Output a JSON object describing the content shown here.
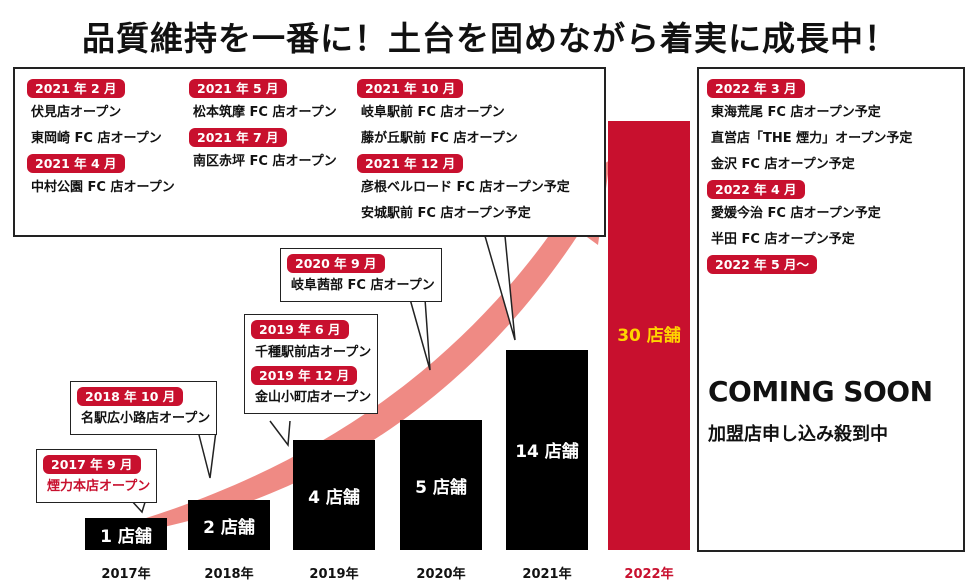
{
  "title": "品質維持を一番に！土台を固めながら着実に成長中！",
  "colors": {
    "accent": "#c8102e",
    "bar": "#000000",
    "arrow": "#ef8a84"
  },
  "chart_data": {
    "type": "bar",
    "categories": [
      "2017年",
      "2018年",
      "2019年",
      "2020年",
      "2021年",
      "2022年"
    ],
    "values": [
      1,
      2,
      4,
      5,
      14,
      30
    ],
    "data_labels": [
      "1 店舗",
      "2 店舗",
      "4 店舗",
      "5 店舗",
      "14 店舗",
      "30 店舗"
    ],
    "highlight": "2022年",
    "grid": false
  },
  "callouts": {
    "y2017": {
      "date": "2017 年 9 月",
      "text": "煙力本店オープン"
    },
    "y2018": {
      "date": "2018 年 10 月",
      "text": "名駅広小路店オープン"
    },
    "y2019": [
      {
        "date": "2019 年 6 月",
        "text": "千種駅前店オープン"
      },
      {
        "date": "2019 年 12 月",
        "text": "金山小町店オープン"
      }
    ],
    "y2020": {
      "date": "2020 年 9 月",
      "text": "岐阜茜部 FC 店オープン"
    }
  },
  "box2021": {
    "col1": [
      {
        "date": "2021 年 2 月",
        "items": [
          "伏見店オープン",
          "東岡崎 FC 店オープン"
        ]
      },
      {
        "date": "2021 年 4 月",
        "items": [
          "中村公園 FC 店オープン"
        ]
      }
    ],
    "col2": [
      {
        "date": "2021 年 5 月",
        "items": [
          "松本筑摩 FC 店オープン"
        ]
      },
      {
        "date": "2021 年 7 月",
        "items": [
          "南区赤坪 FC 店オープン"
        ]
      }
    ],
    "col3": [
      {
        "date": "2021 年 10 月",
        "items": [
          "岐阜駅前 FC 店オープン",
          "藤が丘駅前 FC 店オープン"
        ]
      },
      {
        "date": "2021 年 12 月",
        "items": [
          "彦根ベルロード FC 店オープン予定",
          "安城駅前 FC 店オープン予定"
        ]
      }
    ]
  },
  "box2022": {
    "groups": [
      {
        "date": "2022 年 3 月",
        "items": [
          "東海荒尾 FC 店オープン予定",
          "直営店「THE 煙力」オープン予定",
          "金沢 FC 店オープン予定"
        ]
      },
      {
        "date": "2022 年 4 月",
        "items": [
          "愛媛今治 FC 店オープン予定",
          "半田 FC 店オープン予定"
        ]
      },
      {
        "date": "2022 年 5 月～",
        "items": []
      }
    ],
    "coming_soon": "COMING SOON",
    "recruit": "加盟店申し込み殺到中"
  }
}
